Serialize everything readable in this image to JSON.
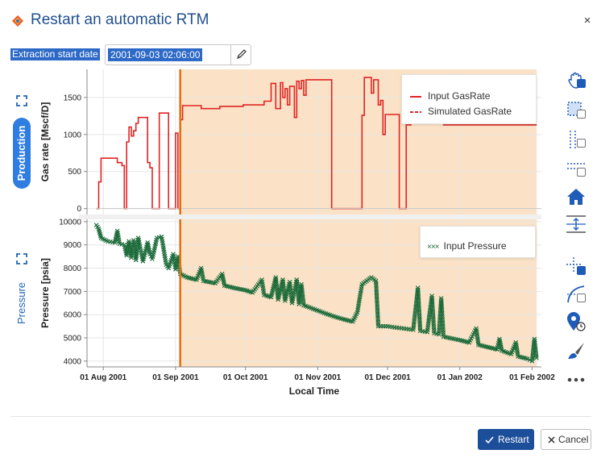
{
  "dialog": {
    "title": "Restart an automatic RTM",
    "close_glyph": "×",
    "close_icon": "close-icon",
    "logo_icon": "app-logo-icon"
  },
  "extraction": {
    "label": "Extraction start date",
    "value": "2001-09-03 02:06:00",
    "edit_icon": "pencil-icon"
  },
  "panels": {
    "production_label": "Production",
    "pressure_label": "Pressure",
    "expand_icon": "expand-icon"
  },
  "colors": {
    "brand_blue": "#1f4f8f",
    "accent_blue": "#2f7de0",
    "selection_blue": "#2d69c7",
    "gas_rate_red": "#e02424",
    "pressure_green": "#1d6b3a",
    "marker_orange": "#e07010",
    "highlight_fill": "#fbe2c6"
  },
  "toolbar": {
    "tools": [
      "pan-icon",
      "box-zoom-icon",
      "x-zoom-icon",
      "y-zoom-icon",
      "reset-home-icon",
      "auto-range-icon",
      "crosshair-icon",
      "line-draw-icon",
      "point-select-icon",
      "brush-icon",
      "more-icon"
    ]
  },
  "footer": {
    "restart_label": "Restart",
    "cancel_label": "Cancel",
    "restart_icon": "check-icon",
    "cancel_icon": "close-icon"
  },
  "chart_data": [
    {
      "type": "line",
      "title": "",
      "xlabel": "Local Time",
      "ylabel": "Gas rate [Mscf/D]",
      "x_axis": "date",
      "x_ticks": [
        "01 Aug 2001",
        "01 Sep 2001",
        "01 Oct 2001",
        "01 Nov 2001",
        "01 Dec 2001",
        "01 Jan 2002",
        "01 Feb 2002"
      ],
      "xlim": [
        "2001-07-25",
        "2002-02-05"
      ],
      "y_ticks": [
        0,
        500,
        1000,
        1500
      ],
      "ylim": [
        -80,
        1880
      ],
      "grid": true,
      "legend_placement": "top-right",
      "highlighted_range": [
        "2001-09-03",
        "2002-02-03"
      ],
      "marker_date": "2001-09-03",
      "series": [
        {
          "name": "Input GasRate",
          "style": "solid",
          "color": "#e02424",
          "points": [
            [
              "2001-07-29",
              0
            ],
            [
              "2001-07-30",
              0
            ],
            [
              "2001-07-30",
              360
            ],
            [
              "2001-07-31",
              360
            ],
            [
              "2001-07-31",
              680
            ],
            [
              "2001-08-07",
              680
            ],
            [
              "2001-08-07",
              620
            ],
            [
              "2001-08-09",
              620
            ],
            [
              "2001-08-09",
              580
            ],
            [
              "2001-08-10",
              580
            ],
            [
              "2001-08-10",
              0
            ],
            [
              "2001-08-11",
              0
            ],
            [
              "2001-08-11",
              900
            ],
            [
              "2001-08-12",
              900
            ],
            [
              "2001-08-12",
              1100
            ],
            [
              "2001-08-13",
              1100
            ],
            [
              "2001-08-13",
              980
            ],
            [
              "2001-08-14",
              980
            ],
            [
              "2001-08-14",
              1050
            ],
            [
              "2001-08-15",
              1050
            ],
            [
              "2001-08-15",
              1150
            ],
            [
              "2001-08-16",
              1150
            ],
            [
              "2001-08-16",
              1230
            ],
            [
              "2001-08-20",
              1230
            ],
            [
              "2001-08-20",
              620
            ],
            [
              "2001-08-21",
              620
            ],
            [
              "2001-08-21",
              550
            ],
            [
              "2001-08-22",
              550
            ],
            [
              "2001-08-22",
              0
            ],
            [
              "2001-08-25",
              0
            ],
            [
              "2001-08-25",
              1290
            ],
            [
              "2001-08-29",
              1290
            ],
            [
              "2001-08-29",
              0
            ],
            [
              "2001-09-01",
              0
            ],
            [
              "2001-09-01",
              1020
            ],
            [
              "2001-09-02",
              1020
            ],
            [
              "2001-09-02",
              0
            ],
            [
              "2001-09-03",
              0
            ],
            [
              "2001-09-03",
              1200
            ],
            [
              "2001-09-04",
              1200
            ],
            [
              "2001-09-04",
              1390
            ],
            [
              "2001-09-12",
              1390
            ],
            [
              "2001-09-12",
              1350
            ],
            [
              "2001-09-20",
              1350
            ],
            [
              "2001-09-20",
              1380
            ],
            [
              "2001-09-30",
              1380
            ],
            [
              "2001-09-30",
              1400
            ],
            [
              "2001-10-09",
              1400
            ],
            [
              "2001-10-09",
              1450
            ],
            [
              "2001-10-12",
              1450
            ],
            [
              "2001-10-12",
              1690
            ],
            [
              "2001-10-14",
              1690
            ],
            [
              "2001-10-14",
              1350
            ],
            [
              "2001-10-16",
              1350
            ],
            [
              "2001-10-16",
              1700
            ],
            [
              "2001-10-17",
              1700
            ],
            [
              "2001-10-17",
              1500
            ],
            [
              "2001-10-18",
              1500
            ],
            [
              "2001-10-18",
              1620
            ],
            [
              "2001-10-19",
              1620
            ],
            [
              "2001-10-19",
              1400
            ],
            [
              "2001-10-20",
              1400
            ],
            [
              "2001-10-20",
              1650
            ],
            [
              "2001-10-22",
              1650
            ],
            [
              "2001-10-22",
              1230
            ],
            [
              "2001-10-23",
              1230
            ],
            [
              "2001-10-23",
              1720
            ],
            [
              "2001-10-24",
              1720
            ],
            [
              "2001-10-24",
              1620
            ],
            [
              "2001-10-25",
              1620
            ],
            [
              "2001-10-25",
              1730
            ],
            [
              "2001-10-26",
              1730
            ],
            [
              "2001-10-26",
              1530
            ],
            [
              "2001-10-27",
              1530
            ],
            [
              "2001-10-27",
              1740
            ],
            [
              "2001-11-07",
              1740
            ],
            [
              "2001-11-07",
              0
            ],
            [
              "2001-11-20",
              0
            ],
            [
              "2001-11-20",
              1260
            ],
            [
              "2001-11-21",
              1260
            ],
            [
              "2001-11-21",
              1770
            ],
            [
              "2001-11-24",
              1770
            ],
            [
              "2001-11-24",
              1560
            ],
            [
              "2001-11-25",
              1560
            ],
            [
              "2001-11-25",
              1740
            ],
            [
              "2001-11-27",
              1740
            ],
            [
              "2001-11-27",
              1400
            ],
            [
              "2001-11-28",
              1400
            ],
            [
              "2001-11-28",
              1460
            ],
            [
              "2001-11-29",
              1460
            ],
            [
              "2001-11-29",
              1000
            ],
            [
              "2001-11-30",
              1000
            ],
            [
              "2001-11-30",
              1270
            ],
            [
              "2001-12-06",
              1270
            ],
            [
              "2001-12-06",
              0
            ],
            [
              "2001-12-09",
              0
            ],
            [
              "2001-12-09",
              1130
            ],
            [
              "2001-12-11",
              1130
            ],
            [
              "2001-12-11",
              1160
            ],
            [
              "2001-12-13",
              1160
            ],
            [
              "2001-12-13",
              1300
            ],
            [
              "2001-12-24",
              1300
            ],
            [
              "2001-12-24",
              1270
            ],
            [
              "2001-12-25",
              1270
            ],
            [
              "2001-12-25",
              1130
            ],
            [
              "2002-02-03",
              1130
            ]
          ]
        },
        {
          "name": "Simulated GasRate",
          "style": "dashed",
          "color": "#e02424",
          "points": []
        }
      ]
    },
    {
      "type": "scatter",
      "title": "",
      "xlabel": "Local Time",
      "ylabel": "Pressure [psia]",
      "x_axis": "date",
      "x_ticks": [
        "01 Aug 2001",
        "01 Sep 2001",
        "01 Oct 2001",
        "01 Nov 2001",
        "01 Dec 2001",
        "01 Jan 2002",
        "01 Feb 2002"
      ],
      "xlim": [
        "2001-07-25",
        "2002-02-05"
      ],
      "y_ticks": [
        4000,
        5000,
        6000,
        7000,
        8000,
        9000,
        10000
      ],
      "ylim": [
        3750,
        10100
      ],
      "grid": true,
      "legend_placement": "top-right",
      "highlighted_range": [
        "2001-09-03",
        "2002-02-03"
      ],
      "marker_date": "2001-09-03",
      "series": [
        {
          "name": "Input Pressure",
          "marker": "x",
          "color": "#1d6b3a",
          "points": [
            [
              "2001-07-29",
              9850
            ],
            [
              "2001-07-30",
              9700
            ],
            [
              "2001-07-31",
              9300
            ],
            [
              "2001-08-03",
              9150
            ],
            [
              "2001-08-06",
              9100
            ],
            [
              "2001-08-07",
              9600
            ],
            [
              "2001-08-08",
              9050
            ],
            [
              "2001-08-10",
              9000
            ],
            [
              "2001-08-11",
              8550
            ],
            [
              "2001-08-12",
              9150
            ],
            [
              "2001-08-13",
              8450
            ],
            [
              "2001-08-14",
              9200
            ],
            [
              "2001-08-15",
              8350
            ],
            [
              "2001-08-16",
              9300
            ],
            [
              "2001-08-18",
              8300
            ],
            [
              "2001-08-20",
              9100
            ],
            [
              "2001-08-21",
              8600
            ],
            [
              "2001-08-22",
              8400
            ],
            [
              "2001-08-24",
              9300
            ],
            [
              "2001-08-26",
              9350
            ],
            [
              "2001-08-28",
              8150
            ],
            [
              "2001-08-29",
              8000
            ],
            [
              "2001-08-31",
              8600
            ],
            [
              "2001-09-01",
              7950
            ],
            [
              "2001-09-02",
              8500
            ],
            [
              "2001-09-03",
              7750
            ],
            [
              "2001-09-06",
              7600
            ],
            [
              "2001-09-10",
              7500
            ],
            [
              "2001-09-12",
              8000
            ],
            [
              "2001-09-13",
              7450
            ],
            [
              "2001-09-18",
              7350
            ],
            [
              "2001-09-21",
              7750
            ],
            [
              "2001-09-22",
              7250
            ],
            [
              "2001-09-26",
              7150
            ],
            [
              "2001-10-01",
              7050
            ],
            [
              "2001-10-04",
              6950
            ],
            [
              "2001-10-08",
              7500
            ],
            [
              "2001-10-09",
              6850
            ],
            [
              "2001-10-12",
              6750
            ],
            [
              "2001-10-14",
              7600
            ],
            [
              "2001-10-15",
              6650
            ],
            [
              "2001-10-17",
              7500
            ],
            [
              "2001-10-18",
              6600
            ],
            [
              "2001-10-20",
              7400
            ],
            [
              "2001-10-21",
              6500
            ],
            [
              "2001-10-23",
              7500
            ],
            [
              "2001-10-24",
              6450
            ],
            [
              "2001-10-25",
              7300
            ],
            [
              "2001-10-26",
              6400
            ],
            [
              "2001-10-30",
              6250
            ],
            [
              "2001-11-03",
              6100
            ],
            [
              "2001-11-07",
              5950
            ],
            [
              "2001-11-12",
              5800
            ],
            [
              "2001-11-16",
              5700
            ],
            [
              "2001-11-18",
              6100
            ],
            [
              "2001-11-20",
              7300
            ],
            [
              "2001-11-24",
              7600
            ],
            [
              "2001-11-26",
              7450
            ],
            [
              "2001-11-27",
              5500
            ],
            [
              "2001-12-01",
              5500
            ],
            [
              "2001-12-04",
              5450
            ],
            [
              "2001-12-08",
              5400
            ],
            [
              "2001-12-12",
              5350
            ],
            [
              "2001-12-14",
              7150
            ],
            [
              "2001-12-15",
              5300
            ],
            [
              "2001-12-18",
              5250
            ],
            [
              "2001-12-20",
              6800
            ],
            [
              "2001-12-21",
              5200
            ],
            [
              "2001-12-23",
              5150
            ],
            [
              "2001-12-24",
              6700
            ],
            [
              "2001-12-25",
              5050
            ],
            [
              "2002-01-01",
              4900
            ],
            [
              "2002-01-05",
              4800
            ],
            [
              "2002-01-08",
              5400
            ],
            [
              "2002-01-09",
              4700
            ],
            [
              "2002-01-13",
              4600
            ],
            [
              "2002-01-17",
              4500
            ],
            [
              "2002-01-18",
              4950
            ],
            [
              "2002-01-19",
              4450
            ],
            [
              "2002-01-23",
              4300
            ],
            [
              "2002-01-25",
              4800
            ],
            [
              "2002-01-26",
              4200
            ],
            [
              "2002-01-30",
              4100
            ],
            [
              "2002-02-01",
              4000
            ],
            [
              "2002-02-02",
              4950
            ],
            [
              "2002-02-03",
              4050
            ]
          ]
        }
      ]
    }
  ]
}
